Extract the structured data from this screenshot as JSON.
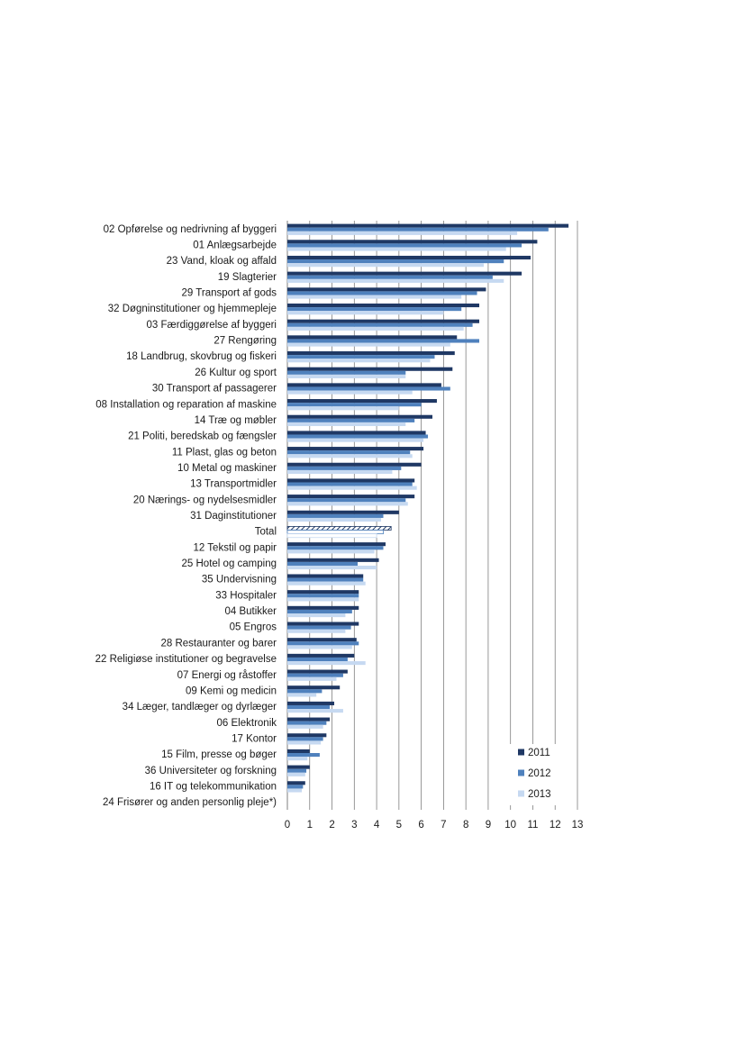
{
  "chart_data": {
    "type": "bar",
    "orientation": "horizontal",
    "categories": [
      "02 Opførelse og nedrivning af byggeri",
      "01 Anlægsarbejde",
      "23 Vand, kloak og affald",
      "19 Slagterier",
      "29 Transport af gods",
      "32 Døgninstitutioner og hjemmepleje",
      "03 Færdiggørelse af byggeri",
      "27 Rengøring",
      "18 Landbrug, skovbrug og fiskeri",
      "26 Kultur og sport",
      "30 Transport af passagerer",
      "08 Installation og reparation af maskine",
      "14 Træ og møbler",
      "21 Politi, beredskab og fængsler",
      "11 Plast, glas og beton",
      "10 Metal og maskiner",
      "13 Transportmidler",
      "20 Nærings- og nydelsesmidler",
      "31 Daginstitutioner",
      "Total",
      "12 Tekstil og papir",
      "25 Hotel og camping",
      "35 Undervisning",
      "33 Hospitaler",
      "04 Butikker",
      "05 Engros",
      "28 Restauranter og barer",
      "22 Religiøse institutioner og begravelse",
      "07 Energi og råstoffer",
      "09 Kemi og medicin",
      "34 Læger, tandlæger og dyrlæger",
      "06 Elektronik",
      "17 Kontor",
      "15 Film, presse og bøger",
      "36 Universiteter og forskning",
      "16 IT og telekommunikation",
      "24 Frisører og anden personlig pleje*)"
    ],
    "series": [
      {
        "name": "2011",
        "color": "#1f3864",
        "values": [
          12.6,
          11.2,
          10.9,
          10.5,
          8.9,
          8.6,
          8.6,
          7.6,
          7.5,
          7.4,
          6.9,
          6.7,
          6.5,
          6.2,
          6.1,
          6.0,
          5.7,
          5.7,
          5.0,
          4.65,
          4.4,
          4.1,
          3.4,
          3.2,
          3.2,
          3.2,
          3.1,
          3.0,
          2.7,
          2.35,
          2.1,
          1.9,
          1.75,
          1.0,
          1.0,
          0.8,
          0.0
        ]
      },
      {
        "name": "2012",
        "color": "#4f81bd",
        "values": [
          11.7,
          10.5,
          9.7,
          9.2,
          8.5,
          7.8,
          8.3,
          8.6,
          6.6,
          5.3,
          7.3,
          6.0,
          5.7,
          6.3,
          5.5,
          5.1,
          5.6,
          5.3,
          4.3,
          4.3,
          4.3,
          3.15,
          3.4,
          3.2,
          2.9,
          2.85,
          3.2,
          2.7,
          2.5,
          1.55,
          1.9,
          1.75,
          1.6,
          1.45,
          0.85,
          0.7,
          0.0
        ]
      },
      {
        "name": "2013",
        "color": "#c6d9f1",
        "values": [
          10.3,
          9.8,
          8.8,
          9.7,
          7.8,
          7.0,
          7.9,
          7.3,
          6.4,
          5.3,
          5.6,
          5.0,
          5.3,
          6.1,
          5.6,
          4.7,
          5.8,
          5.4,
          4.2,
          4.0,
          3.9,
          4.0,
          3.5,
          3.2,
          2.6,
          2.6,
          2.9,
          3.5,
          2.2,
          1.3,
          2.5,
          1.6,
          1.5,
          0.9,
          0.8,
          0.65,
          0.0
        ]
      }
    ],
    "highlight_category": "Total",
    "xticks": [
      "0",
      "1",
      "2",
      "3",
      "4",
      "5",
      "6",
      "7",
      "8",
      "9",
      "10",
      "11",
      "12",
      "13"
    ],
    "xlim": [
      0,
      13
    ],
    "grid": true,
    "legend_position": "bottom-right"
  }
}
